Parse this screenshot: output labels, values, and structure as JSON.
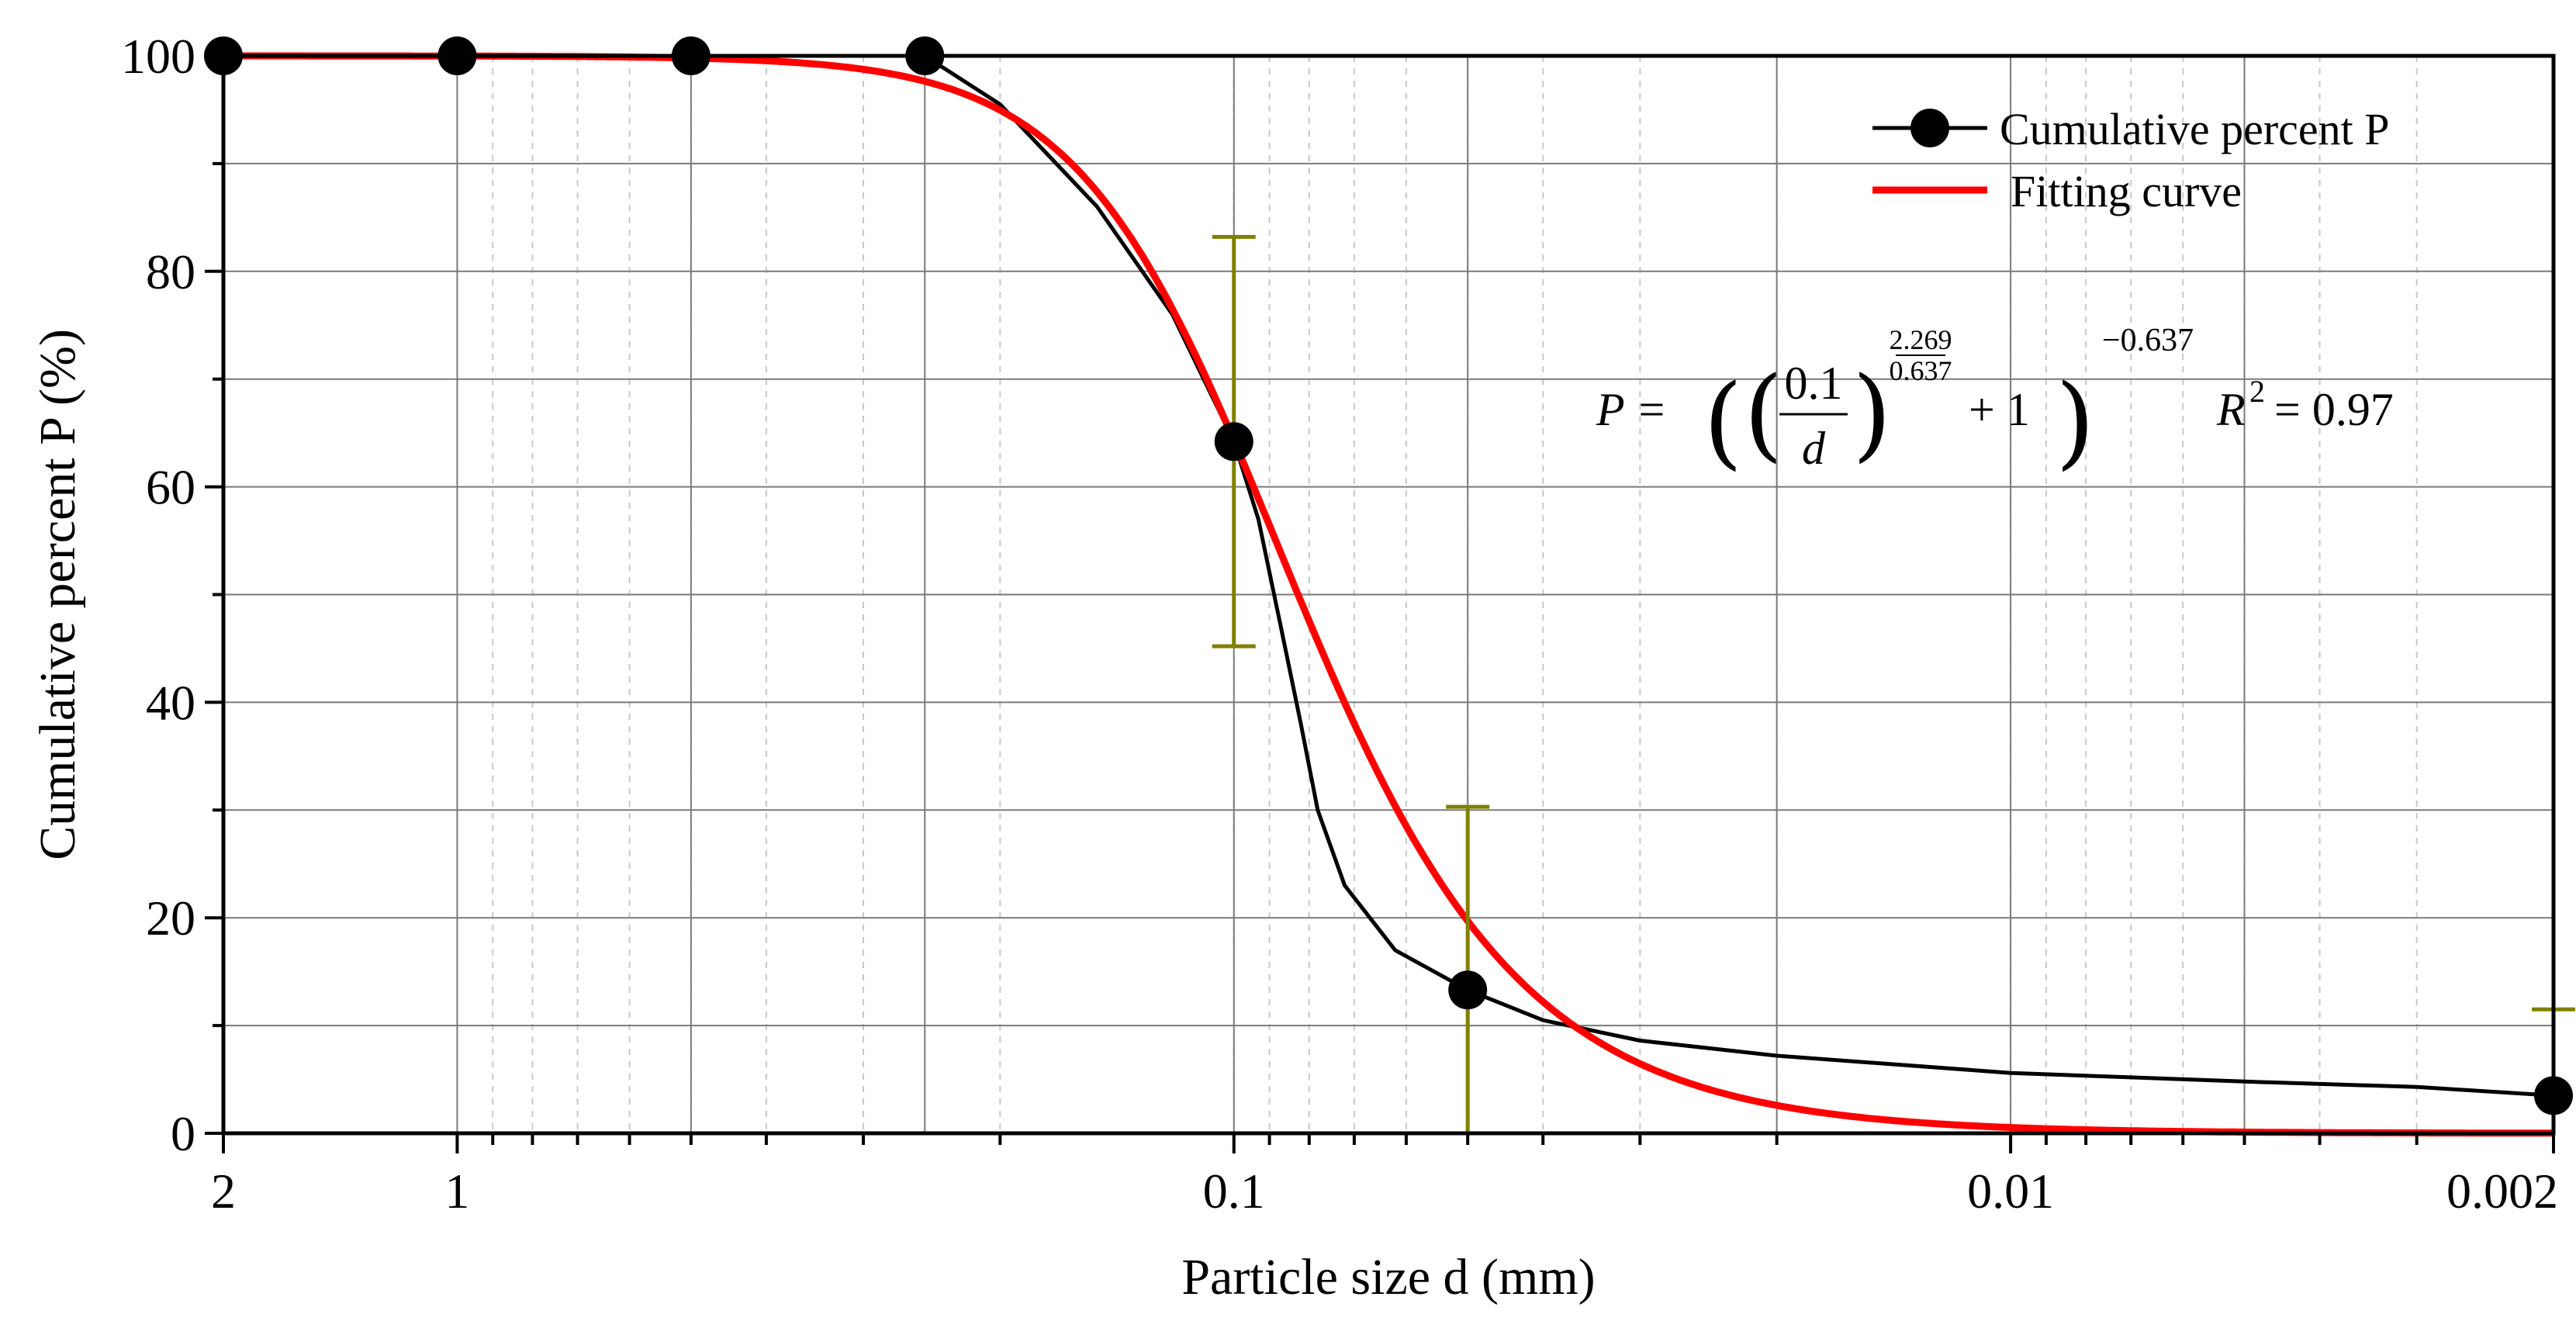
{
  "chart_data": {
    "type": "line",
    "xlabel": "Particle size d (mm)",
    "ylabel": "Cumulative percent P (%)",
    "x_scale": "log",
    "x_reversed": true,
    "xlim": [
      2,
      0.002
    ],
    "ylim": [
      0,
      100
    ],
    "grid": true,
    "legend_position": "top-right",
    "x_tick_labels": [
      "2",
      "1",
      "0.1",
      "0.01",
      "0.002"
    ],
    "x_ticks": [
      2,
      1,
      0.1,
      0.01,
      0.002
    ],
    "y_ticks": [
      0,
      20,
      40,
      60,
      80,
      100
    ],
    "series": [
      {
        "name": "Cumulative percent P",
        "color": "#000000",
        "marker": "circle",
        "x": [
          2,
          1,
          0.5,
          0.25,
          0.1,
          0.05,
          0.002
        ],
        "y": [
          100,
          100,
          100,
          100,
          64.2,
          13.3,
          3.5
        ],
        "curve_x": [
          0.25,
          0.2,
          0.15,
          0.12,
          0.1,
          0.093,
          0.087,
          0.082,
          0.078,
          0.072,
          0.062,
          0.05,
          0.04,
          0.03,
          0.02,
          0.01,
          0.005,
          0.003,
          0.002
        ],
        "curve_y": [
          100,
          95.5,
          86,
          76,
          64.2,
          57,
          47,
          38,
          30,
          23,
          17,
          13.3,
          10.5,
          8.6,
          7.2,
          5.6,
          4.8,
          4.3,
          3.5
        ]
      },
      {
        "name": "Fitting curve",
        "color": "#ff0000",
        "model": {
          "a": 0.1,
          "n": 2.269,
          "m": 0.637
        }
      }
    ],
    "error_bars": [
      {
        "x": 0.1,
        "low": 45.2,
        "high": 83.2
      },
      {
        "x": 0.05,
        "low": 0,
        "high": 30.3
      },
      {
        "x": 0.002,
        "low": 0,
        "high": 11.5
      }
    ],
    "error_bar_color": "#808000",
    "equation": {
      "lhs": "P =",
      "numerator": "0.1",
      "denominator": "d",
      "exp_num": "2.269",
      "exp_den": "0.637",
      "plus": "+ 1",
      "outer_exp": "−0.637",
      "r2_label": "R",
      "r2_sup": "2",
      "r2_value": "= 0.97"
    }
  }
}
